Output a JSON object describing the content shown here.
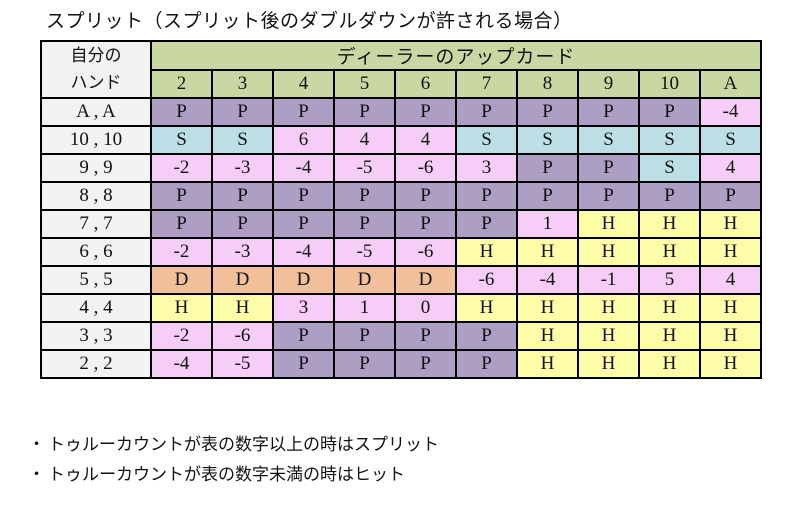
{
  "title": "スプリット（スプリット後のダブルダウンが許される場合）",
  "table": {
    "corner_label": [
      "自分の",
      "ハンド"
    ],
    "dealer_header": "ディーラーのアップカード",
    "upcards": [
      "2",
      "3",
      "4",
      "5",
      "6",
      "7",
      "8",
      "9",
      "10",
      "A"
    ],
    "rows": [
      {
        "hand": "A , A",
        "cells": [
          "P",
          "P",
          "P",
          "P",
          "P",
          "P",
          "P",
          "P",
          "P",
          "-4"
        ]
      },
      {
        "hand": "10 , 10",
        "cells": [
          "S",
          "S",
          "6",
          "4",
          "4",
          "S",
          "S",
          "S",
          "S",
          "S"
        ]
      },
      {
        "hand": "9 , 9",
        "cells": [
          "-2",
          "-3",
          "-4",
          "-5",
          "-6",
          "3",
          "P",
          "P",
          "S",
          "4"
        ]
      },
      {
        "hand": "8 , 8",
        "cells": [
          "P",
          "P",
          "P",
          "P",
          "P",
          "P",
          "P",
          "P",
          "P",
          "P"
        ]
      },
      {
        "hand": "7 , 7",
        "cells": [
          "P",
          "P",
          "P",
          "P",
          "P",
          "P",
          "1",
          "H",
          "H",
          "H"
        ]
      },
      {
        "hand": "6 , 6",
        "cells": [
          "-2",
          "-3",
          "-4",
          "-5",
          "-6",
          "H",
          "H",
          "H",
          "H",
          "H"
        ]
      },
      {
        "hand": "5 , 5",
        "cells": [
          "D",
          "D",
          "D",
          "D",
          "D",
          "-6",
          "-4",
          "-1",
          "5",
          "4"
        ]
      },
      {
        "hand": "4 , 4",
        "cells": [
          "H",
          "H",
          "3",
          "1",
          "0",
          "H",
          "H",
          "H",
          "H",
          "H"
        ]
      },
      {
        "hand": "3 , 3",
        "cells": [
          "-2",
          "-6",
          "P",
          "P",
          "P",
          "P",
          "H",
          "H",
          "H",
          "H"
        ]
      },
      {
        "hand": "2 , 2",
        "cells": [
          "-4",
          "-5",
          "P",
          "P",
          "P",
          "P",
          "H",
          "H",
          "H",
          "H"
        ]
      }
    ]
  },
  "colors": {
    "P": "#ad9fc4",
    "S": "#bcdfe6",
    "H": "#fffea8",
    "D": "#f1c09b",
    "number": "#f5cdf7",
    "header": "#c9d8a3",
    "hand": "#f2f2f2"
  },
  "notes": [
    "トゥルーカウントが表の数字以上の時はスプリット",
    "トゥルーカウントが表の数字未満の時はヒット"
  ],
  "bullet": "・"
}
